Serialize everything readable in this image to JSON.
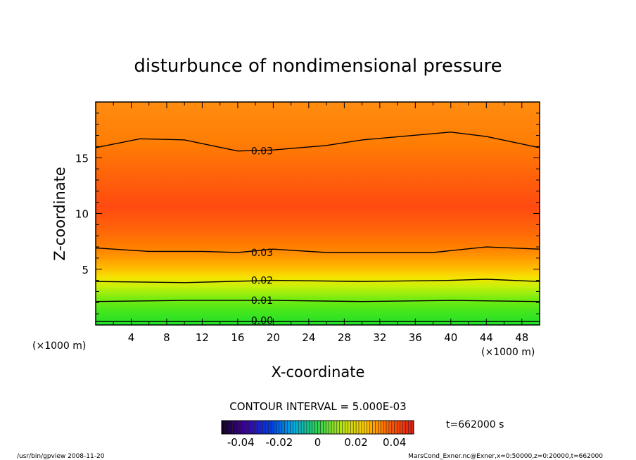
{
  "chart_data": {
    "type": "heatmap",
    "title": "disturbunce of nondimensional pressure",
    "xlabel": "X-coordinate",
    "ylabel": "Z-coordinate",
    "x_unit": "(×1000 m)",
    "y_unit": "(×1000 m)",
    "xlim": [
      0,
      50
    ],
    "ylim": [
      0,
      20
    ],
    "x_ticks": [
      4,
      8,
      12,
      16,
      20,
      24,
      28,
      32,
      36,
      40,
      44,
      48
    ],
    "y_ticks": [
      5,
      10,
      15
    ],
    "grid": false,
    "contour_interval_label": "CONTOUR INTERVAL = 5.000E-03",
    "contour_labels": [
      {
        "text": "0.03",
        "x": 17.5,
        "z": 15.6
      },
      {
        "text": "0.03",
        "x": 17.5,
        "z": 6.5
      },
      {
        "text": "0.02",
        "x": 17.5,
        "z": 4.0
      },
      {
        "text": "0.01",
        "x": 17.5,
        "z": 2.2
      },
      {
        "text": "0.00",
        "x": 17.5,
        "z": 0.4
      }
    ],
    "contours": [
      {
        "level": 0.0,
        "x": [
          0,
          50
        ],
        "z": [
          0.3,
          0.3
        ]
      },
      {
        "level": 0.01,
        "x": [
          0,
          10,
          20,
          30,
          40,
          50
        ],
        "z": [
          2.1,
          2.2,
          2.2,
          2.1,
          2.2,
          2.1
        ]
      },
      {
        "level": 0.02,
        "x": [
          0,
          10,
          20,
          30,
          40,
          44,
          50
        ],
        "z": [
          3.9,
          3.8,
          4.0,
          3.9,
          4.0,
          4.1,
          3.9
        ]
      },
      {
        "level": 0.03,
        "x": [
          0,
          6,
          12,
          16,
          20,
          26,
          32,
          38,
          44,
          50
        ],
        "z": [
          6.9,
          6.6,
          6.6,
          6.5,
          6.8,
          6.5,
          6.5,
          6.5,
          7.0,
          6.8
        ]
      },
      {
        "level": 0.03,
        "x": [
          0,
          5,
          10,
          16,
          20,
          26,
          30,
          40,
          44,
          50
        ],
        "z": [
          15.9,
          16.7,
          16.6,
          15.6,
          15.7,
          16.1,
          16.6,
          17.3,
          16.9,
          15.9
        ]
      }
    ],
    "colorbar": {
      "ticks": [
        "-0.04",
        "-0.02",
        "0",
        "0.02",
        "0.04"
      ],
      "range": [
        -0.05,
        0.05
      ]
    },
    "time_label": "t=662000 s",
    "footer_left": "/usr/bin/gpview  2008-11-20",
    "footer_right": "MarsCond_Exner.nc@Exner,x=0:50000,z=0:20000,t=662000"
  }
}
